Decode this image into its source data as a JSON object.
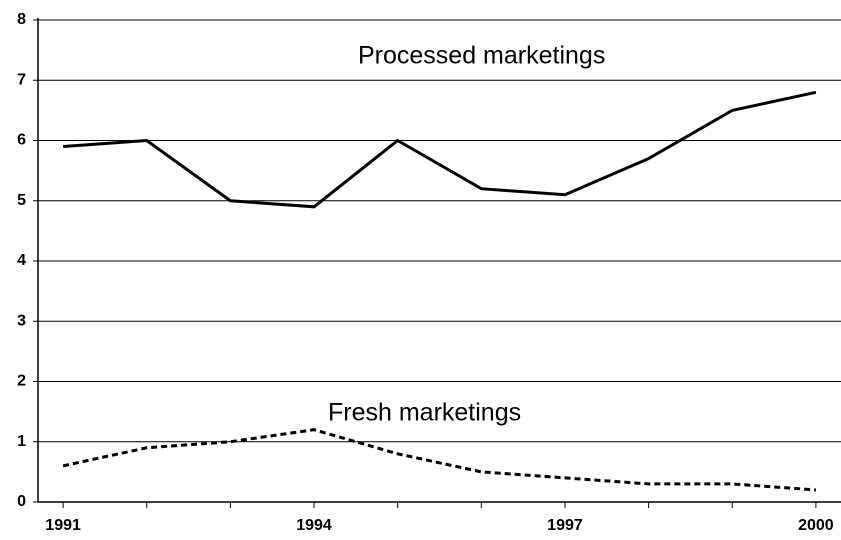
{
  "chart_data": {
    "type": "line",
    "x": [
      1991,
      1992,
      1993,
      1994,
      1995,
      1996,
      1997,
      1998,
      1999,
      2000
    ],
    "series": [
      {
        "name": "Processed marketings",
        "color": "#000000",
        "line_style": "solid",
        "values": [
          5.9,
          6.0,
          5.0,
          4.9,
          6.0,
          5.2,
          5.1,
          5.7,
          6.5,
          6.8
        ]
      },
      {
        "name": "Fresh marketings",
        "color": "#000000",
        "line_style": "dashed",
        "values": [
          0.6,
          0.9,
          1.0,
          1.2,
          0.8,
          0.5,
          0.4,
          0.3,
          0.3,
          0.2
        ]
      }
    ],
    "xlim": [
      1990.7,
      2000.3
    ],
    "xticks": [
      1991,
      1994,
      1997,
      2000
    ],
    "ylim": [
      0,
      8
    ],
    "yticks": [
      0,
      1,
      2,
      3,
      4,
      5,
      6,
      7,
      8
    ],
    "grid": true
  }
}
